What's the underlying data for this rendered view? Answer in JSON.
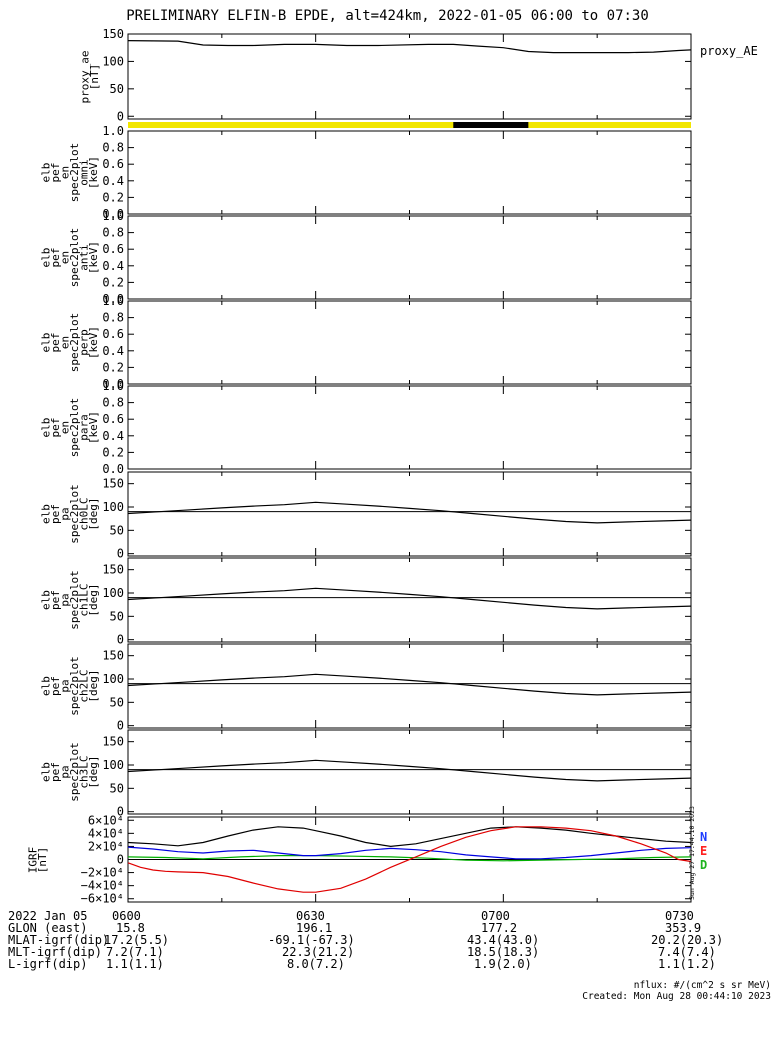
{
  "title": "PRELIMINARY ELFIN-B EPDE, alt=424km, 2022-01-05 06:00 to 07:30",
  "side_label": "proxy_AE",
  "right_vertical_stamp": "Sun Aug 27 17:44:10 2023",
  "panels": [
    {
      "id": "proxy_ae",
      "ylabel": [
        "proxy_ae",
        "[nT]"
      ],
      "yticks": [
        "150",
        "100",
        "50",
        "0"
      ]
    },
    {
      "id": "omni",
      "ylabel": [
        "elb",
        "pef",
        "en",
        "spec2plot",
        "omni",
        "[keV]"
      ],
      "yticks": [
        "1.0",
        "0.8",
        "0.6",
        "0.4",
        "0.2",
        "0.0"
      ]
    },
    {
      "id": "anti",
      "ylabel": [
        "elb",
        "pef",
        "en",
        "spec2plot",
        "anti",
        "[keV]"
      ],
      "yticks": [
        "1.0",
        "0.8",
        "0.6",
        "0.4",
        "0.2",
        "0.0"
      ]
    },
    {
      "id": "perp",
      "ylabel": [
        "elb",
        "pef",
        "en",
        "spec2plot",
        "perp",
        "[keV]"
      ],
      "yticks": [
        "1.0",
        "0.8",
        "0.6",
        "0.4",
        "0.2",
        "0.0"
      ]
    },
    {
      "id": "para",
      "ylabel": [
        "elb",
        "pef",
        "en",
        "spec2plot",
        "para",
        "[keV]"
      ],
      "yticks": [
        "1.0",
        "0.8",
        "0.6",
        "0.4",
        "0.2",
        "0.0"
      ]
    },
    {
      "id": "ch0LC",
      "ylabel": [
        "elb",
        "pef",
        "pa",
        "spec2plot",
        "ch0LC",
        "[deg]"
      ],
      "yticks": [
        "150",
        "100",
        "50",
        "0"
      ]
    },
    {
      "id": "ch1LC",
      "ylabel": [
        "elb",
        "pef",
        "pa",
        "spec2plot",
        "ch1LC",
        "[deg]"
      ],
      "yticks": [
        "150",
        "100",
        "50",
        "0"
      ]
    },
    {
      "id": "ch2LC",
      "ylabel": [
        "elb",
        "pef",
        "pa",
        "spec2plot",
        "ch2LC",
        "[deg]"
      ],
      "yticks": [
        "150",
        "100",
        "50",
        "0"
      ]
    },
    {
      "id": "ch3LC",
      "ylabel": [
        "elb",
        "pef",
        "pa",
        "spec2plot",
        "ch3LC",
        "[deg]"
      ],
      "yticks": [
        "150",
        "100",
        "50",
        "0"
      ]
    },
    {
      "id": "igrf",
      "ylabel": [
        "IGRF",
        "[nT]"
      ],
      "yticks": [
        "6×10⁴",
        "4×10⁴",
        "2×10⁴",
        "0",
        "−2×10⁴",
        "−4×10⁴",
        "−6×10⁴"
      ]
    }
  ],
  "legend_igrf": [
    {
      "label": "N",
      "color": "#1e3cff"
    },
    {
      "label": "E",
      "color": "#ff2020"
    },
    {
      "label": "D",
      "color": "#1fb31f"
    }
  ],
  "colors": {
    "sunlit": "#f2e600",
    "shadow": "#000000",
    "model_black": "#000000",
    "red": "#e00000",
    "blue": "#0000e0",
    "green": "#00b000"
  },
  "chart_data": {
    "type": "line",
    "x_range_minutes_ut": [
      360,
      450
    ],
    "xtick_labels": [
      "0600",
      "0630",
      "0700",
      "0730"
    ],
    "proxy_ae": {
      "x": [
        360,
        368,
        372,
        376,
        380,
        385,
        390,
        395,
        400,
        408,
        412,
        416,
        420,
        424,
        428,
        432,
        436,
        440,
        444,
        448,
        450
      ],
      "y": [
        138,
        137,
        130,
        129,
        129,
        131,
        131,
        129,
        129,
        131,
        131,
        128,
        125,
        118,
        116,
        116,
        116,
        116,
        117,
        120,
        121
      ]
    },
    "sunlit_bar": {
      "shadow_start": 412,
      "shadow_end": 424
    },
    "pa_mean_deg": {
      "x": [
        360,
        365,
        370,
        375,
        380,
        385,
        390,
        395,
        400,
        405,
        410,
        415,
        420,
        425,
        430,
        435,
        440,
        445,
        450
      ],
      "y": [
        86,
        90,
        94,
        98,
        102,
        105,
        110,
        106,
        102,
        97,
        92,
        86,
        80,
        74,
        69,
        66,
        68,
        70,
        72
      ]
    },
    "pa_ref_deg": 90,
    "igrf_scale": 10000.0,
    "igrf_black": {
      "x": [
        360,
        364,
        368,
        372,
        376,
        380,
        384,
        388,
        390,
        394,
        398,
        402,
        406,
        410,
        414,
        418,
        422,
        426,
        430,
        434,
        438,
        442,
        446,
        450
      ],
      "y": [
        2.6,
        2.4,
        2.1,
        2.6,
        3.6,
        4.5,
        5.0,
        4.8,
        4.4,
        3.6,
        2.6,
        2.0,
        2.4,
        3.2,
        4.0,
        4.8,
        5.0,
        4.8,
        4.5,
        4.0,
        3.6,
        3.2,
        2.8,
        2.6
      ]
    },
    "igrf_red": {
      "x": [
        360,
        362,
        364,
        366,
        368,
        372,
        376,
        380,
        384,
        388,
        390,
        394,
        398,
        402,
        406,
        410,
        414,
        418,
        422,
        426,
        430,
        434,
        438,
        442,
        446,
        448,
        450
      ],
      "y": [
        -0.5,
        -1.2,
        -1.6,
        -1.8,
        -1.9,
        -2.0,
        -2.6,
        -3.6,
        -4.5,
        -5.0,
        -5.0,
        -4.4,
        -3.0,
        -1.2,
        0.4,
        2.0,
        3.4,
        4.4,
        5.0,
        5.0,
        4.8,
        4.4,
        3.6,
        2.4,
        1.0,
        0.0,
        -0.3
      ]
    },
    "igrf_blue": {
      "x": [
        360,
        364,
        368,
        372,
        376,
        380,
        384,
        388,
        390,
        394,
        398,
        402,
        406,
        410,
        414,
        418,
        422,
        426,
        430,
        434,
        438,
        442,
        446,
        450
      ],
      "y": [
        1.9,
        1.6,
        1.2,
        1.0,
        1.3,
        1.4,
        1.0,
        0.6,
        0.6,
        0.9,
        1.4,
        1.7,
        1.5,
        1.2,
        0.7,
        0.4,
        0.1,
        0.1,
        0.3,
        0.6,
        1.0,
        1.4,
        1.7,
        1.8
      ]
    },
    "igrf_green": {
      "x": [
        360,
        366,
        372,
        378,
        384,
        390,
        396,
        402,
        408,
        414,
        420,
        426,
        432,
        438,
        444,
        450
      ],
      "y": [
        0.4,
        0.3,
        0.1,
        0.4,
        0.6,
        0.6,
        0.5,
        0.4,
        0.2,
        -0.1,
        -0.2,
        -0.1,
        0.0,
        0.1,
        0.3,
        0.4
      ]
    }
  },
  "ephemeris": {
    "rows": [
      {
        "label": "2022 Jan 05",
        "values": [
          "0600",
          "0630",
          "0700",
          "0730"
        ]
      },
      {
        "label": "GLON (east)",
        "values": [
          "15.8",
          "196.1",
          "177.2",
          "353.9"
        ]
      },
      {
        "label": "MLAT-igrf(dip)",
        "values": [
          "17.2(5.5)",
          "-69.1(-67.3)",
          "43.4(43.0)",
          "20.2(20.3)"
        ]
      },
      {
        "label": "MLT-igrf(dip)",
        "values": [
          "7.2(7.1)",
          "22.3(21.2)",
          "18.5(18.3)",
          "7.4(7.4)"
        ]
      },
      {
        "label": "L-igrf(dip)",
        "values": [
          "1.1(1.1)",
          "8.0(7.2)",
          "1.9(2.0)",
          "1.1(1.2)"
        ]
      }
    ]
  },
  "footer": {
    "units": "nflux: #/(cm^2 s sr MeV)",
    "created": "Created: Mon Aug 28 00:44:10 2023"
  }
}
